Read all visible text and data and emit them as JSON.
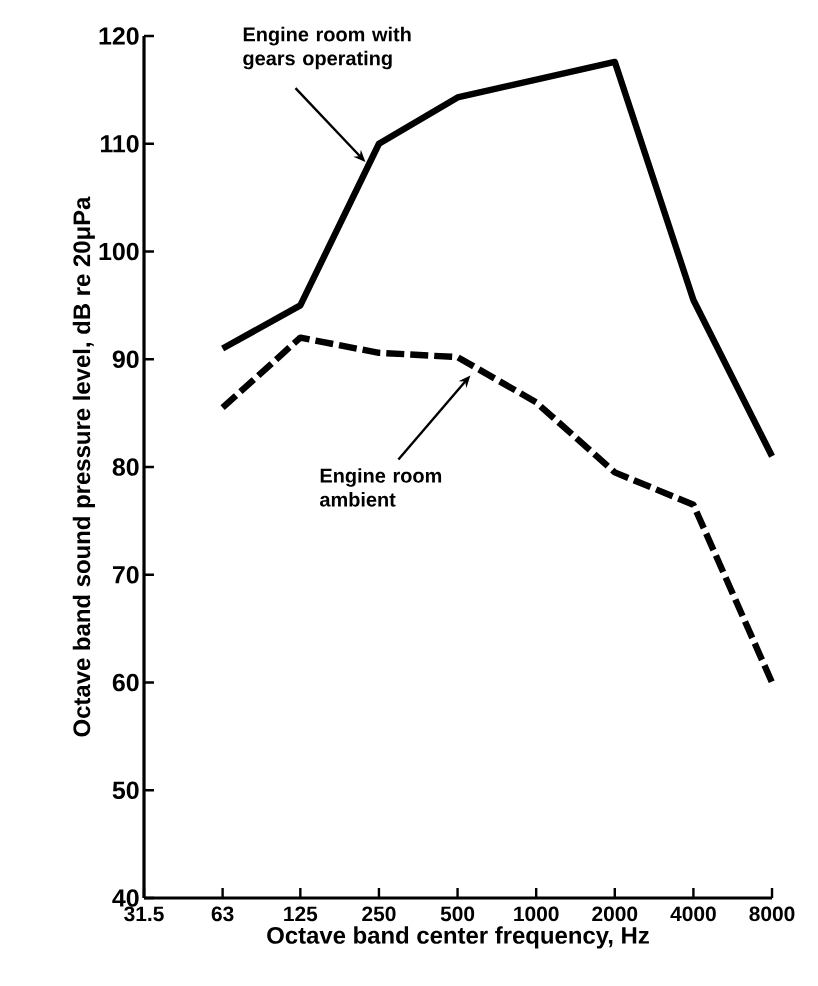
{
  "chart_data": {
    "type": "line",
    "xlabel": "Octave band center frequency, Hz",
    "ylabel": "Octave band sound pressure level, dB re 20μPa",
    "log": "x",
    "xlim": [
      31.5,
      8000
    ],
    "ylim": [
      40,
      120
    ],
    "xticks": [
      31.5,
      63,
      125,
      250,
      500,
      1000,
      2000,
      4000,
      8000
    ],
    "yticks": [
      40,
      50,
      60,
      70,
      80,
      90,
      100,
      110,
      120
    ],
    "grid": false,
    "marker": "none",
    "series": [
      {
        "color": "#000000",
        "line_style": "solid",
        "x": [
          63,
          125,
          250,
          500,
          2000,
          4000,
          8000
        ],
        "values": [
          91,
          95,
          110,
          114.3,
          117.6,
          95.5,
          81
        ]
      },
      {
        "color": "#000000",
        "line_style": "dashed",
        "x": [
          63,
          125,
          250,
          500,
          1000,
          2000,
          4000,
          8000
        ],
        "values": [
          85.5,
          92,
          90.6,
          90.2,
          86,
          79.5,
          76.5,
          60
        ]
      }
    ],
    "annotations": [
      {
        "text": "Engine room with gears operating",
        "x": 222,
        "y": 108.3
      },
      {
        "text": "Engine room ambient",
        "x": 560,
        "y": 88.5
      }
    ]
  }
}
